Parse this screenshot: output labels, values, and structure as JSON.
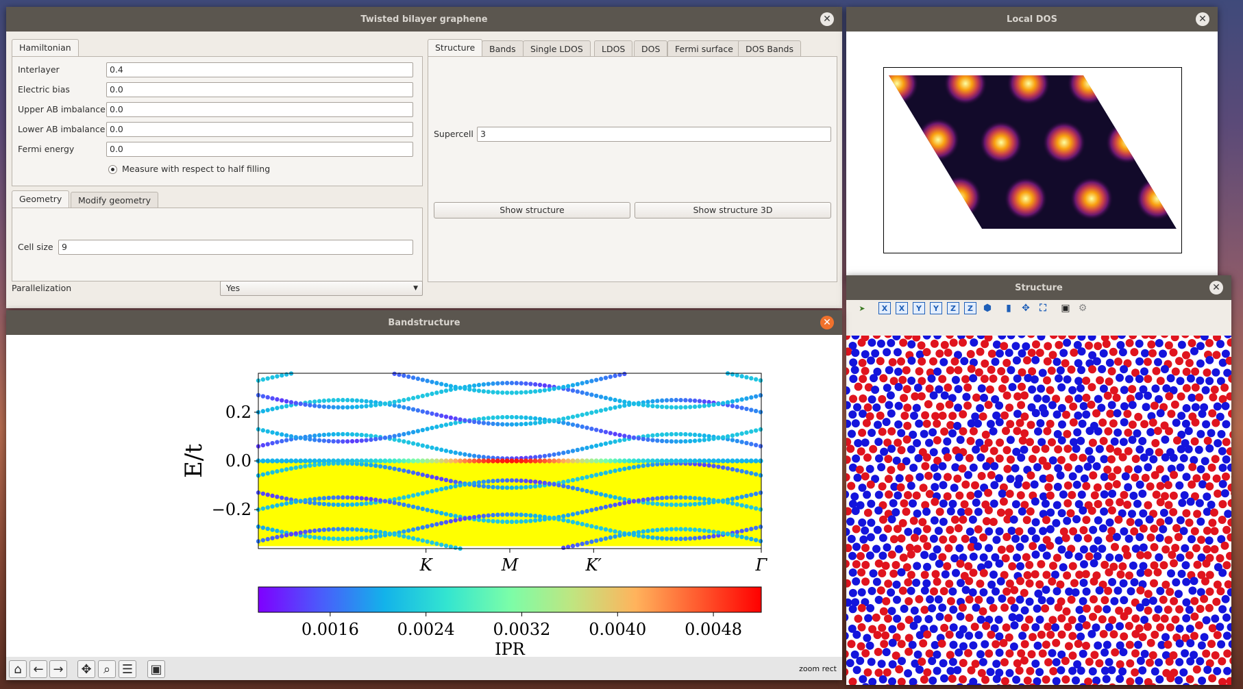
{
  "main_window": {
    "title": "Twisted bilayer graphene",
    "hamiltonian_tab": "Hamiltonian",
    "fields": [
      {
        "label": "Interlayer",
        "value": "0.4"
      },
      {
        "label": "Electric bias",
        "value": "0.0"
      },
      {
        "label": "Upper AB imbalance",
        "value": "0.0"
      },
      {
        "label": "Lower AB imbalance",
        "value": "0.0"
      },
      {
        "label": "Fermi energy",
        "value": "0.0"
      }
    ],
    "half_filling_label": "Measure with respect to half filling",
    "geometry_tabs": [
      "Geometry",
      "Modify geometry"
    ],
    "cell_size_label": "Cell size",
    "cell_size_value": "9",
    "parallelization_label": "Parallelization",
    "parallelization_value": "Yes",
    "right_tabs": [
      "Structure",
      "Bands",
      "Single LDOS",
      "LDOS",
      "DOS",
      "Fermi surface",
      "DOS Bands"
    ],
    "supercell_label": "Supercell",
    "supercell_value": "3",
    "show_structure": "Show structure",
    "show_structure_3d": "Show structure 3D"
  },
  "ldos_window": {
    "title": "Local DOS"
  },
  "structure_window": {
    "title": "Structure",
    "toolbar_icons": [
      "pointer-icon",
      "x-axis-icon",
      "x-axis-reverse-icon",
      "y-axis-icon",
      "y-axis-reverse-icon",
      "z-axis-icon",
      "z-axis-reverse-icon",
      "isometric-icon",
      "projection-icon",
      "move-icon",
      "fit-view-icon",
      "save-icon",
      "settings-icon"
    ],
    "toolbar_glyphs": [
      "X",
      "X",
      "Y",
      "Y",
      "Z",
      "Z"
    ],
    "atom_colors": [
      "#e0141e",
      "#1414dc"
    ]
  },
  "band_window": {
    "title": "Bandstructure",
    "toolbar_icons": [
      "home-icon",
      "back-icon",
      "forward-icon",
      "pan-icon",
      "zoom-icon",
      "configure-icon",
      "save-icon"
    ],
    "status": "zoom rect"
  },
  "chart_data": {
    "type": "scatter",
    "ylabel": "E/t",
    "xlabel": "",
    "ylim": [
      -0.36,
      0.36
    ],
    "yticks": [
      0.2,
      0.0,
      -0.2
    ],
    "ytick_labels": [
      "0.2",
      "0.0",
      "−0.2"
    ],
    "xticks": [
      {
        "label": "K",
        "x": 1
      },
      {
        "label": "M",
        "x": 1.5
      },
      {
        "label": "K′",
        "x": 2
      },
      {
        "label": "Γ",
        "x": 3
      }
    ],
    "xlim": [
      0,
      3
    ],
    "colorbar": {
      "label": "IPR",
      "ticks": [
        "0.0016",
        "0.0024",
        "0.0032",
        "0.0040",
        "0.0048"
      ],
      "range": [
        0.001,
        0.0052
      ],
      "tick_values": [
        0.0016,
        0.0024,
        0.0032,
        0.004,
        0.0048
      ],
      "cmap": "rainbow"
    },
    "filled_region_color": "#ffff00",
    "filled_region_energy": [
      -0.35,
      -0.005
    ],
    "flat_band_energy": 0.0
  }
}
